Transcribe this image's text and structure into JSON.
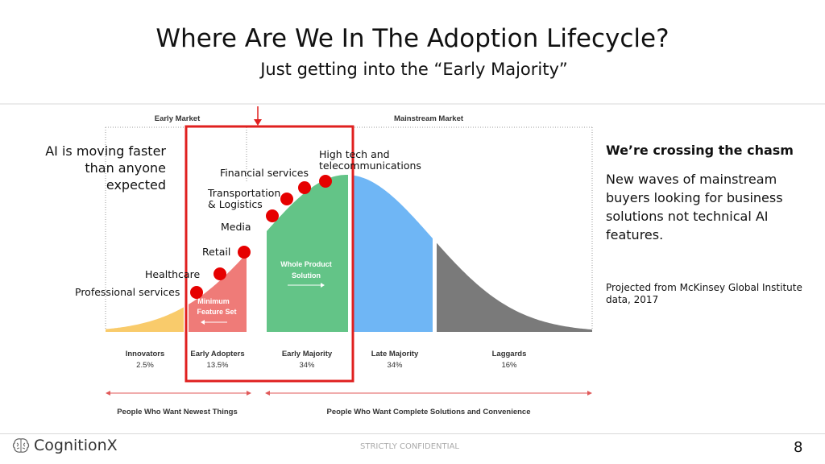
{
  "title": "Where Are We In The Adoption Lifecycle?",
  "subtitle": "Just getting into the “Early Majority”",
  "markets": {
    "early": "Early Market",
    "mainstream": "Mainstream Market"
  },
  "segments": [
    {
      "name": "Innovators",
      "pct": "2.5%",
      "color": "#f9cb6b"
    },
    {
      "name": "Early Adopters",
      "pct": "13.5%",
      "color": "#ef7b78"
    },
    {
      "name": "Early Majority",
      "pct": "34%",
      "color": "#63c487"
    },
    {
      "name": "Late Majority",
      "pct": "34%",
      "color": "#6fb6f5"
    },
    {
      "name": "Laggards",
      "pct": "16%",
      "color": "#7a7a7a"
    }
  ],
  "curve_labels": {
    "minimum_1": "Minimum",
    "minimum_2": "Feature Set",
    "whole_1": "Whole Product",
    "whole_2": "Solution"
  },
  "bottom_groups": {
    "left": "People Who Want Newest Things",
    "right": "People Who Want Complete Solutions and Convenience"
  },
  "side_note": [
    "AI is moving faster",
    "than anyone",
    "expected"
  ],
  "industries": {
    "professional": "Professional services",
    "healthcare": "Healthcare",
    "retail": "Retail",
    "media": "Media",
    "transport_1": "Transportation",
    "transport_2": "& Logistics",
    "financial": "Financial services",
    "hightech_1": "High tech and",
    "hightech_2": "telecommunications"
  },
  "chasm": {
    "heading": "We’re crossing the chasm",
    "body": "New waves of mainstream buyers looking for business solutions not technical AI features.",
    "source": "Projected from McKinsey Global Institute data, 2017"
  },
  "footer": {
    "brand": "CognitionX",
    "confidential": "STRICTLY CONFIDENTIAL",
    "page": "8"
  },
  "colors": {
    "highlight": "#e0201f",
    "marker": "#e60000"
  }
}
